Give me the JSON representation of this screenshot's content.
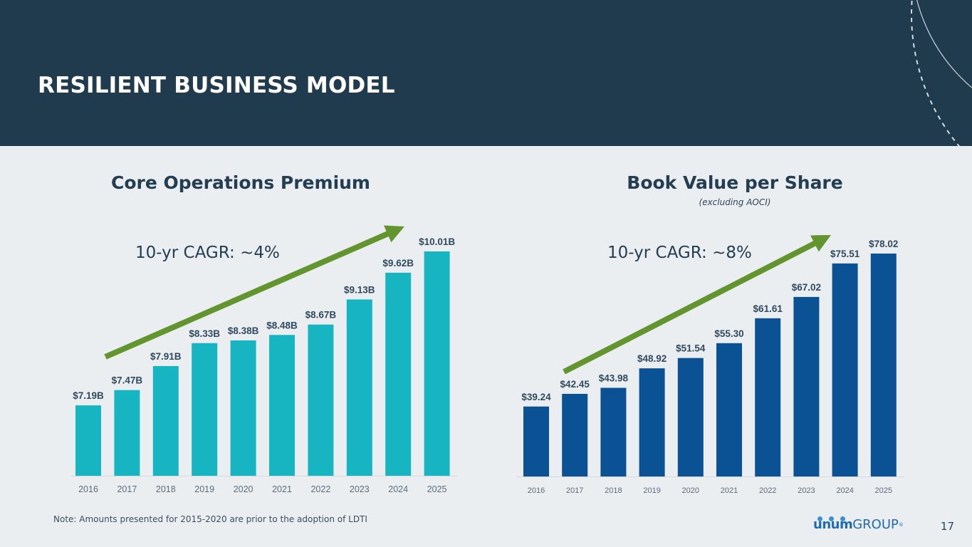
{
  "header": {
    "title": "RESILIENT BUSINESS MODEL"
  },
  "footnote": "Note: Amounts presented for 2015-2020 are prior to the adoption of LDTI",
  "logo": {
    "brand": "unum",
    "suffix": "GROUP",
    "mark": "®"
  },
  "page_number": "17",
  "colors": {
    "header_bg": "#203a4e",
    "slide_bg": "#ebeef1",
    "premium_bar": "#17b5c1",
    "bvps_bar": "#0b5295",
    "trend_arrow": "#63952f"
  },
  "chart_data": [
    {
      "type": "bar",
      "title": "Core Operations Premium",
      "subtitle": "",
      "annotation": "10-yr CAGR: ~4%",
      "categories": [
        "2016",
        "2017",
        "2018",
        "2019",
        "2020",
        "2021",
        "2022",
        "2023",
        "2024",
        "2025"
      ],
      "values": [
        7.19,
        7.47,
        7.91,
        8.33,
        8.38,
        8.48,
        8.67,
        9.13,
        9.62,
        10.01
      ],
      "data_labels": [
        "$7.19B",
        "$7.47B",
        "$7.91B",
        "$8.33B",
        "$8.38B",
        "$8.48B",
        "$8.67B",
        "$9.13B",
        "$9.62B",
        "$10.01B"
      ],
      "xlabel": "",
      "ylabel": "",
      "ylim": [
        5.9,
        10.01
      ],
      "grid": false,
      "legend": "none",
      "color": "#17b5c1"
    },
    {
      "type": "bar",
      "title": "Book Value per Share",
      "subtitle": "(excluding AOCI)",
      "annotation": "10-yr CAGR: ~8%",
      "categories": [
        "2016",
        "2017",
        "2018",
        "2019",
        "2020",
        "2021",
        "2022",
        "2023",
        "2024",
        "2025"
      ],
      "values": [
        39.24,
        42.45,
        43.98,
        48.92,
        51.54,
        55.3,
        61.61,
        67.02,
        75.51,
        78.02
      ],
      "data_labels": [
        "$39.24",
        "$42.45",
        "$43.98",
        "$48.92",
        "$51.54",
        "$55.30",
        "$61.61",
        "$67.02",
        "$75.51",
        "$78.02"
      ],
      "xlabel": "",
      "ylabel": "",
      "ylim": [
        21.5,
        78.02
      ],
      "grid": false,
      "legend": "none",
      "color": "#0b5295"
    }
  ]
}
